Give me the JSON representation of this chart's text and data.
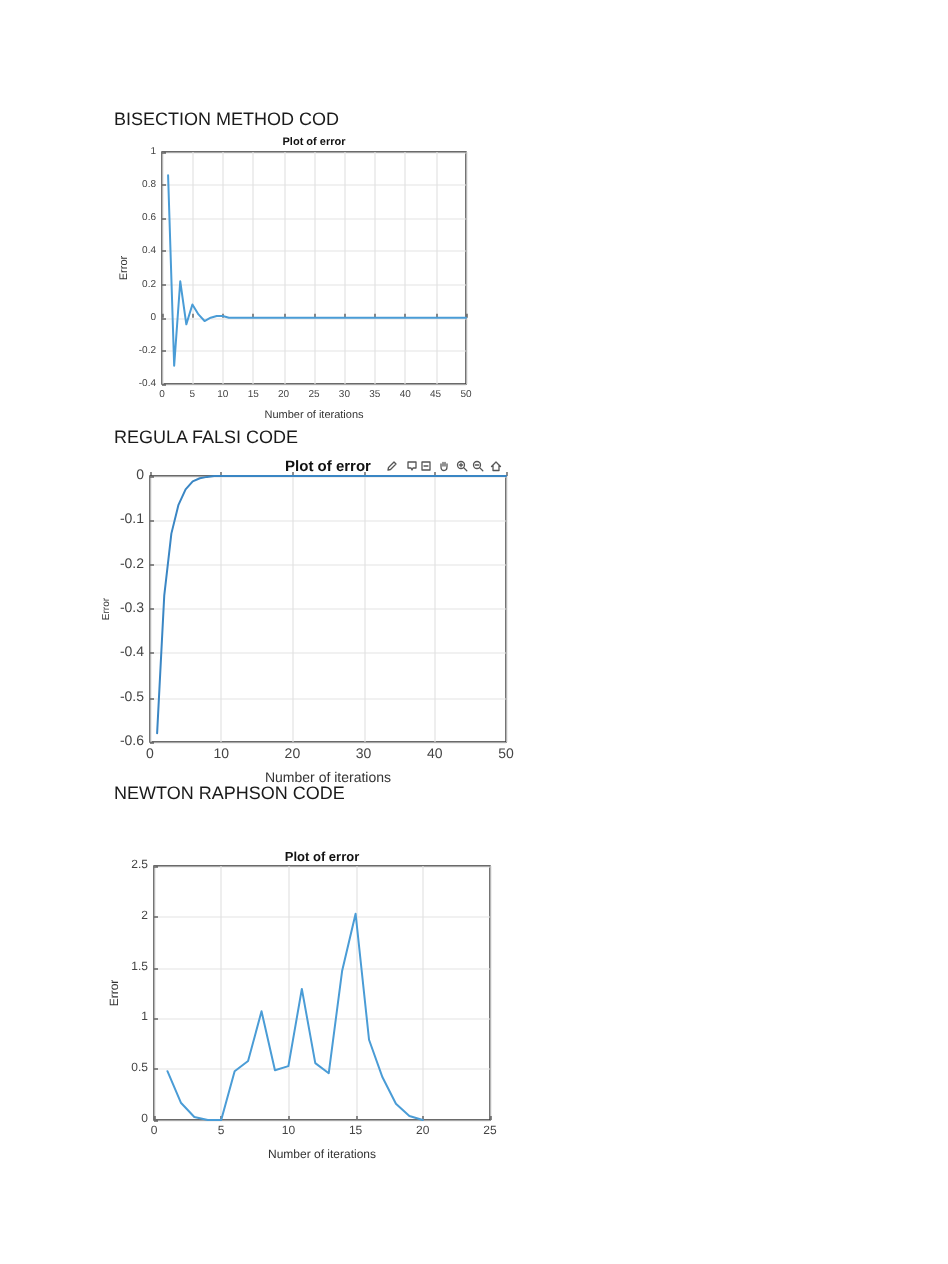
{
  "chart_data": [
    {
      "type": "line",
      "title": "BISECTION METHOD COD",
      "subtitle": "Plot of error",
      "xlabel": "Number of iterations",
      "ylabel": "Error",
      "x": [
        1,
        2,
        3,
        4,
        5,
        6,
        7,
        8,
        9,
        10,
        11,
        12,
        13,
        14,
        15,
        16,
        17,
        18,
        19,
        20,
        21,
        22,
        23,
        24,
        25,
        26,
        27,
        28,
        29,
        30,
        31,
        32,
        33,
        34,
        35,
        36,
        37,
        38,
        39,
        40,
        41,
        42,
        43,
        44,
        45,
        46,
        47,
        48,
        49,
        50
      ],
      "values": [
        0.86,
        -0.29,
        0.22,
        -0.04,
        0.08,
        0.02,
        -0.02,
        0,
        0.01,
        0.01,
        0,
        0,
        0,
        0,
        0,
        0,
        0,
        0,
        0,
        0,
        0,
        0,
        0,
        0,
        0,
        0,
        0,
        0,
        0,
        0,
        0,
        0,
        0,
        0,
        0,
        0,
        0,
        0,
        0,
        0,
        0,
        0,
        0,
        0,
        0,
        0,
        0,
        0,
        0,
        0
      ],
      "color": "#4a9cd6",
      "xlim": [
        0,
        50
      ],
      "ylim": [
        -0.4,
        1
      ],
      "xticks": [
        0,
        5,
        10,
        15,
        20,
        25,
        30,
        35,
        40,
        45,
        50
      ],
      "yticks": [
        -0.4,
        -0.2,
        0,
        0.2,
        0.4,
        0.6,
        0.8,
        1
      ],
      "grid": true
    },
    {
      "type": "line",
      "title": "REGULA FALSI CODE",
      "subtitle": "Plot of error",
      "xlabel": "Number of iterations",
      "ylabel": "Error",
      "x": [
        1,
        2,
        3,
        4,
        5,
        6,
        7,
        8,
        9,
        10,
        11,
        12,
        13,
        14,
        15,
        16,
        17,
        18,
        19,
        20,
        21,
        22,
        23,
        24,
        25,
        26,
        27,
        28,
        29,
        30,
        31,
        32,
        33,
        34,
        35,
        36,
        37,
        38,
        39,
        40,
        41,
        42,
        43,
        44,
        45,
        46,
        47,
        48,
        49,
        50
      ],
      "values": [
        -0.58,
        -0.27,
        -0.13,
        -0.065,
        -0.03,
        -0.012,
        -0.005,
        -0.002,
        0,
        0,
        0,
        0,
        0,
        0,
        0,
        0,
        0,
        0,
        0,
        0,
        0,
        0,
        0,
        0,
        0,
        0,
        0,
        0,
        0,
        0,
        0,
        0,
        0,
        0,
        0,
        0,
        0,
        0,
        0,
        0,
        0,
        0,
        0,
        0,
        0,
        0,
        0,
        0,
        0,
        0
      ],
      "color": "#3a86c4",
      "xlim": [
        0,
        50
      ],
      "ylim": [
        -0.6,
        0
      ],
      "xticks": [
        0,
        10,
        20,
        30,
        40,
        50
      ],
      "yticks": [
        -0.6,
        -0.5,
        -0.4,
        -0.3,
        -0.2,
        -0.1,
        0
      ],
      "grid": true
    },
    {
      "type": "line",
      "title": "NEWTON RAPHSON CODE",
      "subtitle": "Plot of error",
      "xlabel": "Number of iterations",
      "ylabel": "Error",
      "x": [
        1,
        2,
        3,
        4,
        5,
        6,
        7,
        8,
        9,
        10,
        11,
        12,
        13,
        14,
        15,
        16,
        17,
        18,
        19,
        20
      ],
      "values": [
        0.48,
        0.17,
        0.03,
        0,
        0,
        0.48,
        0.58,
        1.07,
        0.49,
        0.53,
        1.29,
        0.56,
        0.46,
        1.47,
        2.03,
        0.79,
        0.42,
        0.16,
        0.04,
        0
      ],
      "color": "#4a9cd6",
      "xlim": [
        0,
        25
      ],
      "ylim": [
        0,
        2.5
      ],
      "xticks": [
        0,
        5,
        10,
        15,
        20,
        25
      ],
      "yticks": [
        0,
        0.5,
        1,
        1.5,
        2,
        2.5
      ],
      "grid": true
    }
  ]
}
